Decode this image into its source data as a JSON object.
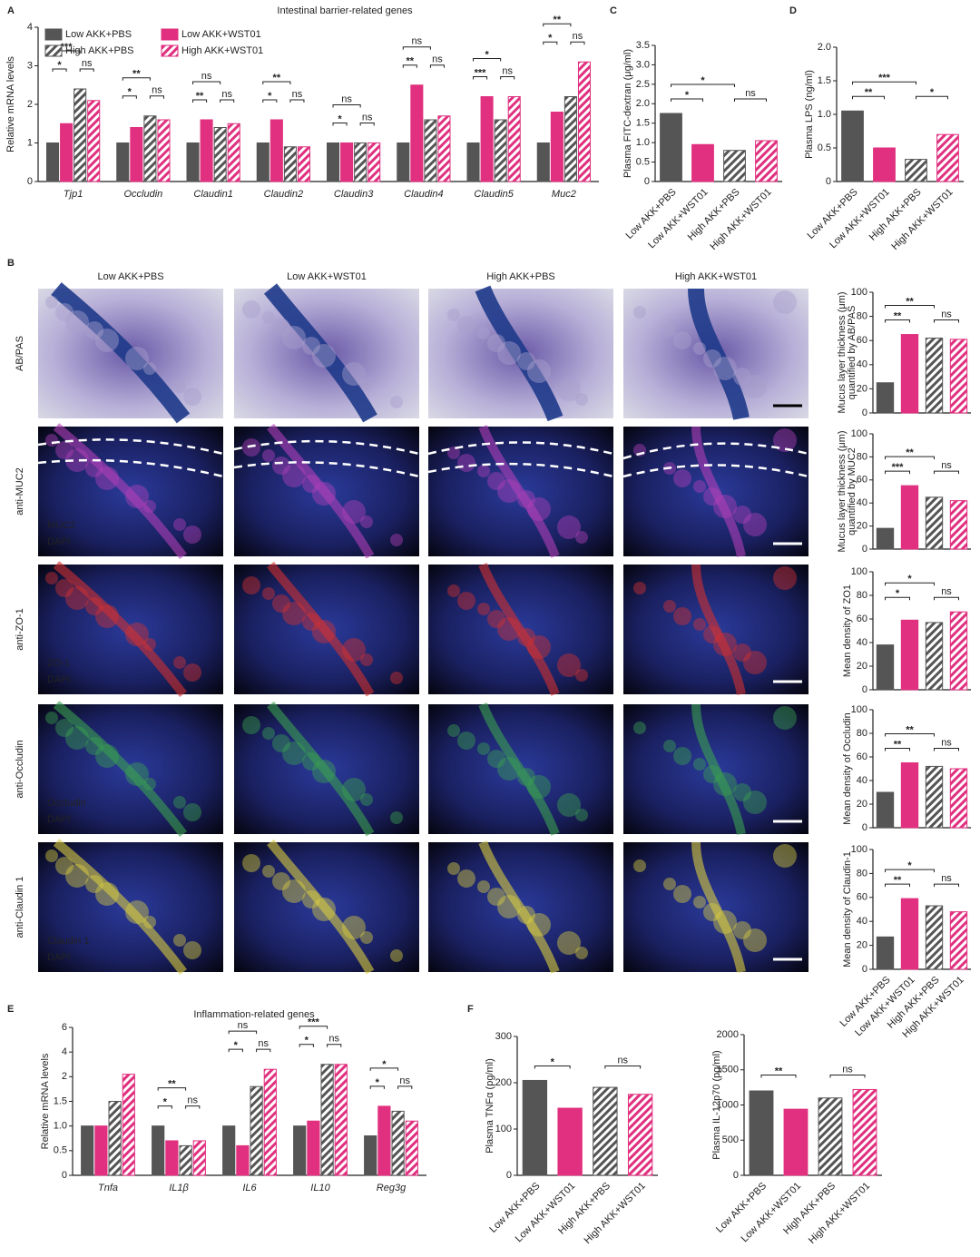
{
  "chart_data": [
    {
      "type": "bar",
      "panel": "A",
      "title": "Intestinal barrier-related genes",
      "ylabel": "Relative mRNA levels",
      "categories": [
        "Tjp1",
        "Occludin",
        "Claudin1",
        "Claudin2",
        "Claudin3",
        "Claudin4",
        "Claudin5",
        "Muc2"
      ],
      "series": [
        {
          "name": "Low AKK+PBS",
          "color": "#555555",
          "hatch": false,
          "values": [
            1.0,
            1.0,
            1.0,
            1.0,
            1.0,
            1.0,
            1.0,
            1.0
          ]
        },
        {
          "name": "Low AKK+WST01",
          "color": "#e0307f",
          "hatch": false,
          "values": [
            1.5,
            1.4,
            1.6,
            1.6,
            1.0,
            2.5,
            2.2,
            1.8
          ]
        },
        {
          "name": "High AKK+PBS",
          "color": "#555555",
          "hatch": true,
          "values": [
            2.4,
            1.7,
            1.4,
            0.9,
            1.0,
            1.6,
            1.6,
            2.2
          ]
        },
        {
          "name": "High AKK+WST01",
          "color": "#e0307f",
          "hatch": true,
          "values": [
            2.1,
            1.6,
            1.5,
            0.9,
            1.0,
            1.7,
            2.2,
            3.1
          ]
        }
      ],
      "ylim": [
        0,
        4
      ],
      "yticks": [
        0,
        1,
        2,
        3,
        4
      ],
      "annotations": [
        {
          "category": 0,
          "pair": [
            0,
            1
          ],
          "label": "*"
        },
        {
          "category": 0,
          "pair": [
            2,
            3
          ],
          "label": "ns"
        },
        {
          "category": 0,
          "pair": [
            0,
            2
          ],
          "label": "***"
        },
        {
          "category": 1,
          "pair": [
            0,
            1
          ],
          "label": "*"
        },
        {
          "category": 1,
          "pair": [
            2,
            3
          ],
          "label": "ns"
        },
        {
          "category": 1,
          "pair": [
            0,
            2
          ],
          "label": "**"
        },
        {
          "category": 2,
          "pair": [
            0,
            1
          ],
          "label": "**"
        },
        {
          "category": 2,
          "pair": [
            2,
            3
          ],
          "label": "ns"
        },
        {
          "category": 2,
          "pair": [
            0,
            2
          ],
          "label": "ns"
        },
        {
          "category": 3,
          "pair": [
            0,
            1
          ],
          "label": "*"
        },
        {
          "category": 3,
          "pair": [
            2,
            3
          ],
          "label": "ns"
        },
        {
          "category": 3,
          "pair": [
            0,
            2
          ],
          "label": "**"
        },
        {
          "category": 4,
          "pair": [
            0,
            1
          ],
          "label": "*"
        },
        {
          "category": 4,
          "pair": [
            2,
            3
          ],
          "label": "ns"
        },
        {
          "category": 4,
          "pair": [
            0,
            2
          ],
          "label": "ns"
        },
        {
          "category": 5,
          "pair": [
            0,
            1
          ],
          "label": "**"
        },
        {
          "category": 5,
          "pair": [
            2,
            3
          ],
          "label": "ns"
        },
        {
          "category": 5,
          "pair": [
            0,
            2
          ],
          "label": "ns"
        },
        {
          "category": 6,
          "pair": [
            0,
            1
          ],
          "label": "***"
        },
        {
          "category": 6,
          "pair": [
            2,
            3
          ],
          "label": "ns"
        },
        {
          "category": 6,
          "pair": [
            0,
            2
          ],
          "label": "*"
        },
        {
          "category": 7,
          "pair": [
            0,
            1
          ],
          "label": "*"
        },
        {
          "category": 7,
          "pair": [
            2,
            3
          ],
          "label": "ns"
        },
        {
          "category": 7,
          "pair": [
            0,
            2
          ],
          "label": "**"
        }
      ]
    },
    {
      "type": "bar",
      "panel": "C",
      "ylabel": "Plasma FITC-dextran (μg/ml)",
      "categories": [
        "Low AKK+PBS",
        "Low AKK+WST01",
        "High AKK+PBS",
        "High AKK+WST01"
      ],
      "values": [
        1.75,
        0.95,
        0.8,
        1.05
      ],
      "colors": [
        "#555555",
        "#e0307f",
        "#555555",
        "#e0307f"
      ],
      "hatch": [
        false,
        false,
        true,
        true
      ],
      "ylim": [
        0,
        3.5
      ],
      "yticks": [
        0,
        0.5,
        {
          "value": 1,
          "label": "1.0"
        },
        1.5,
        {
          "value": 2,
          "label": "2.0"
        },
        2.5,
        {
          "value": 3,
          "label": "3.0"
        },
        3.5
      ],
      "annotations": [
        {
          "pair": [
            0,
            1
          ],
          "label": "*"
        },
        {
          "pair": [
            2,
            3
          ],
          "label": "ns"
        },
        {
          "pair": [
            0,
            2
          ],
          "label": "*"
        }
      ]
    },
    {
      "type": "bar",
      "panel": "D",
      "ylabel": "Plasma LPS (ng/ml)",
      "categories": [
        "Low AKK+PBS",
        "Low AKK+WST01",
        "High AKK+PBS",
        "High AKK+WST01"
      ],
      "values": [
        1.05,
        0.5,
        0.33,
        0.7
      ],
      "colors": [
        "#555555",
        "#e0307f",
        "#555555",
        "#e0307f"
      ],
      "hatch": [
        false,
        false,
        true,
        true
      ],
      "ylim": [
        0,
        2
      ],
      "yticks": [
        0,
        0.5,
        {
          "value": 1,
          "label": "1.0"
        },
        1.5,
        {
          "value": 2,
          "label": "2.0"
        }
      ],
      "annotations": [
        {
          "pair": [
            0,
            1
          ],
          "label": "**"
        },
        {
          "pair": [
            2,
            3
          ],
          "label": "*"
        },
        {
          "pair": [
            0,
            2
          ],
          "label": "***"
        }
      ]
    },
    {
      "type": "bar",
      "ylabel": [
        "Mucus layer thickness (μm)",
        "quantified by AB/PAS"
      ],
      "values": [
        25,
        65,
        62,
        61
      ],
      "colors": [
        "#555555",
        "#e0307f",
        "#555555",
        "#e0307f"
      ],
      "hatch": [
        false,
        false,
        true,
        true
      ],
      "ylim": [
        0,
        100
      ],
      "yticks": [
        0,
        20,
        40,
        60,
        80,
        100
      ],
      "annotations": [
        {
          "pair": [
            0,
            1
          ],
          "label": "**"
        },
        {
          "pair": [
            2,
            3
          ],
          "label": "ns"
        },
        {
          "pair": [
            0,
            2
          ],
          "label": "**"
        }
      ]
    },
    {
      "type": "bar",
      "ylabel": [
        "Mucus layer thickness (μm)",
        "quantified by MUC2"
      ],
      "values": [
        18,
        55,
        45,
        42
      ],
      "colors": [
        "#555555",
        "#e0307f",
        "#555555",
        "#e0307f"
      ],
      "hatch": [
        false,
        false,
        true,
        true
      ],
      "ylim": [
        0,
        100
      ],
      "yticks": [
        0,
        20,
        40,
        60,
        80,
        100
      ],
      "annotations": [
        {
          "pair": [
            0,
            1
          ],
          "label": "***"
        },
        {
          "pair": [
            2,
            3
          ],
          "label": "ns"
        },
        {
          "pair": [
            0,
            2
          ],
          "label": "**"
        }
      ]
    },
    {
      "type": "bar",
      "ylabel": [
        "Mean density of ZO1"
      ],
      "values": [
        38,
        59,
        57,
        66
      ],
      "colors": [
        "#555555",
        "#e0307f",
        "#555555",
        "#e0307f"
      ],
      "hatch": [
        false,
        false,
        true,
        true
      ],
      "ylim": [
        0,
        100
      ],
      "yticks": [
        0,
        20,
        40,
        60,
        80,
        100
      ],
      "annotations": [
        {
          "pair": [
            0,
            1
          ],
          "label": "*"
        },
        {
          "pair": [
            2,
            3
          ],
          "label": "ns"
        },
        {
          "pair": [
            0,
            2
          ],
          "label": "*"
        }
      ]
    },
    {
      "type": "bar",
      "ylabel": [
        "Mean density of Occludin"
      ],
      "values": [
        30,
        55,
        52,
        50
      ],
      "colors": [
        "#555555",
        "#e0307f",
        "#555555",
        "#e0307f"
      ],
      "hatch": [
        false,
        false,
        true,
        true
      ],
      "ylim": [
        0,
        100
      ],
      "yticks": [
        0,
        20,
        40,
        60,
        80,
        100
      ],
      "annotations": [
        {
          "pair": [
            0,
            1
          ],
          "label": "**"
        },
        {
          "pair": [
            2,
            3
          ],
          "label": "ns"
        },
        {
          "pair": [
            0,
            2
          ],
          "label": "**"
        }
      ]
    },
    {
      "type": "bar",
      "ylabel": [
        "Mean density of Claudin-1"
      ],
      "categories": [
        "Low AKK+PBS",
        "Low AKK+WST01",
        "High AKK+PBS",
        "High AKK+WST01"
      ],
      "values": [
        27,
        59,
        53,
        48
      ],
      "colors": [
        "#555555",
        "#e0307f",
        "#555555",
        "#e0307f"
      ],
      "hatch": [
        false,
        false,
        true,
        true
      ],
      "ylim": [
        0,
        100
      ],
      "yticks": [
        0,
        20,
        40,
        60,
        80,
        100
      ],
      "annotations": [
        {
          "pair": [
            0,
            1
          ],
          "label": "**"
        },
        {
          "pair": [
            2,
            3
          ],
          "label": "ns"
        },
        {
          "pair": [
            0,
            2
          ],
          "label": "*"
        }
      ]
    },
    {
      "type": "bar",
      "panel": "E",
      "title": "Inflammation-related genes",
      "ylabel": "Relative mRNA levels",
      "categories": [
        "Tnfa",
        "IL1β",
        "IL6",
        "IL10",
        "Reg3g"
      ],
      "series": [
        {
          "color": "#555555",
          "hatch": false,
          "values": [
            1.0,
            1.0,
            1.0,
            1.0,
            0.8
          ]
        },
        {
          "color": "#e0307f",
          "hatch": false,
          "values": [
            1.0,
            0.7,
            0.6,
            1.1,
            1.4
          ]
        },
        {
          "color": "#555555",
          "hatch": true,
          "values": [
            1.5,
            0.6,
            1.8,
            3.0,
            1.3
          ]
        },
        {
          "color": "#e0307f",
          "hatch": true,
          "values": [
            2.2,
            0.7,
            2.6,
            3.0,
            1.1
          ]
        }
      ],
      "ylim": [
        0,
        6
      ],
      "yticks": [
        0,
        0.5,
        {
          "value": 1,
          "label": "1.0"
        },
        1.5,
        2,
        4,
        6
      ],
      "annotations": [
        {
          "category": 1,
          "pair": [
            0,
            1
          ],
          "label": "*"
        },
        {
          "category": 1,
          "pair": [
            2,
            3
          ],
          "label": "ns"
        },
        {
          "category": 1,
          "pair": [
            0,
            2
          ],
          "label": "**"
        },
        {
          "category": 2,
          "pair": [
            0,
            1
          ],
          "label": "*"
        },
        {
          "category": 2,
          "pair": [
            2,
            3
          ],
          "label": "ns"
        },
        {
          "category": 2,
          "pair": [
            0,
            2
          ],
          "label": "ns"
        },
        {
          "category": 3,
          "pair": [
            0,
            1
          ],
          "label": "*"
        },
        {
          "category": 3,
          "pair": [
            2,
            3
          ],
          "label": "ns"
        },
        {
          "category": 3,
          "pair": [
            0,
            2
          ],
          "label": "***"
        },
        {
          "category": 4,
          "pair": [
            0,
            1
          ],
          "label": "*"
        },
        {
          "category": 4,
          "pair": [
            2,
            3
          ],
          "label": "ns"
        },
        {
          "category": 4,
          "pair": [
            0,
            2
          ],
          "label": "*"
        }
      ]
    },
    {
      "type": "bar",
      "panel": "F",
      "ylabel": "Plasma TNFα (pg/ml)",
      "categories": [
        "Low AKK+PBS",
        "Low AKK+WST01",
        "High AKK+PBS",
        "High AKK+WST01"
      ],
      "values": [
        205,
        145,
        190,
        175
      ],
      "colors": [
        "#555555",
        "#e0307f",
        "#555555",
        "#e0307f"
      ],
      "hatch": [
        false,
        false,
        true,
        true
      ],
      "ylim": [
        0,
        300
      ],
      "yticks": [
        0,
        100,
        200,
        300
      ],
      "annotations": [
        {
          "pair": [
            0,
            1
          ],
          "label": "*"
        },
        {
          "pair": [
            2,
            3
          ],
          "label": "ns"
        }
      ]
    },
    {
      "type": "bar",
      "ylabel": "Plasma IL-12p70 (pg/ml)",
      "categories": [
        "Low AKK+PBS",
        "Low AKK+WST01",
        "High AKK+PBS",
        "High AKK+WST01"
      ],
      "values": [
        1200,
        940,
        1100,
        1220
      ],
      "colors": [
        "#555555",
        "#e0307f",
        "#555555",
        "#e0307f"
      ],
      "hatch": [
        false,
        false,
        true,
        true
      ],
      "ylim": [
        0,
        2000
      ],
      "yticks": [
        0,
        500,
        1000,
        1500,
        2000
      ],
      "annotations": [
        {
          "pair": [
            0,
            1
          ],
          "label": "**"
        },
        {
          "pair": [
            2,
            3
          ],
          "label": "ns"
        }
      ]
    }
  ],
  "micrographs": {
    "panel": "B",
    "columns": [
      "Low AKK+PBS",
      "Low AKK+WST01",
      "High AKK+PBS",
      "High AKK+WST01"
    ],
    "rows": [
      {
        "label": "AB/PAS",
        "stains": []
      },
      {
        "label": "anti-MUC2",
        "stains": [
          {
            "name": "MUC2",
            "color": "#b03aa0"
          },
          {
            "name": "DAPI",
            "color": "#3a55c8"
          }
        ]
      },
      {
        "label": "anti-ZO-1",
        "stains": [
          {
            "name": "ZO-1",
            "color": "#d02020"
          },
          {
            "name": "DAPI",
            "color": "#3a55c8"
          }
        ]
      },
      {
        "label": "anti-Occludin",
        "stains": [
          {
            "name": "Occludin",
            "color": "#6a9a2a"
          },
          {
            "name": "DAPI",
            "color": "#3a55c8"
          }
        ]
      },
      {
        "label": "anti-Claudin 1",
        "stains": [
          {
            "name": "Claudin 1",
            "color": "#d4c020"
          },
          {
            "name": "DAPI",
            "color": "#3a55c8"
          }
        ]
      }
    ]
  }
}
